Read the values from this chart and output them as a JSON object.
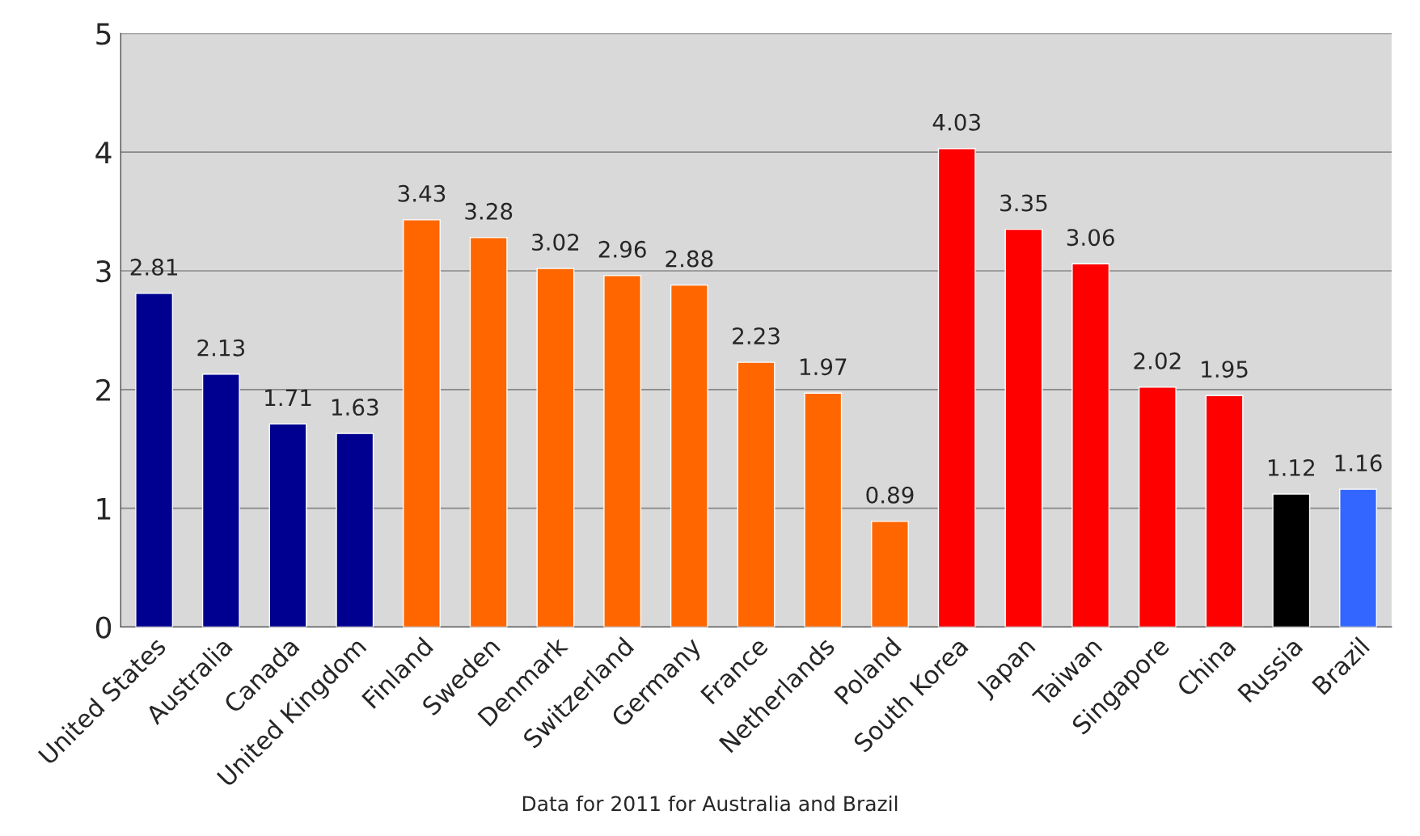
{
  "chart_data": {
    "type": "bar",
    "categories": [
      "United States",
      "Australia",
      "Canada",
      "United Kingdom",
      "Finland",
      "Sweden",
      "Denmark",
      "Switzerland",
      "Germany",
      "France",
      "Netherlands",
      "Poland",
      "South Korea",
      "Japan",
      "Taiwan",
      "Singapore",
      "China",
      "Russia",
      "Brazil"
    ],
    "values": [
      2.81,
      2.13,
      1.71,
      1.63,
      3.43,
      3.28,
      3.02,
      2.96,
      2.88,
      2.23,
      1.97,
      0.89,
      4.03,
      3.35,
      3.06,
      2.02,
      1.95,
      1.12,
      1.16
    ],
    "colors": [
      "#000090",
      "#000090",
      "#000090",
      "#000090",
      "#ff6600",
      "#ff6600",
      "#ff6600",
      "#ff6600",
      "#ff6600",
      "#ff6600",
      "#ff6600",
      "#ff6600",
      "#ff0000",
      "#ff0000",
      "#ff0000",
      "#ff0000",
      "#ff0000",
      "#000000",
      "#3366ff"
    ],
    "ylim": [
      0,
      5
    ],
    "yticks": [
      0,
      1,
      2,
      3,
      4,
      5
    ],
    "grid": "y",
    "data_labels": true,
    "annotations": [
      "Data for 2011 for Australia and Brazil"
    ]
  }
}
